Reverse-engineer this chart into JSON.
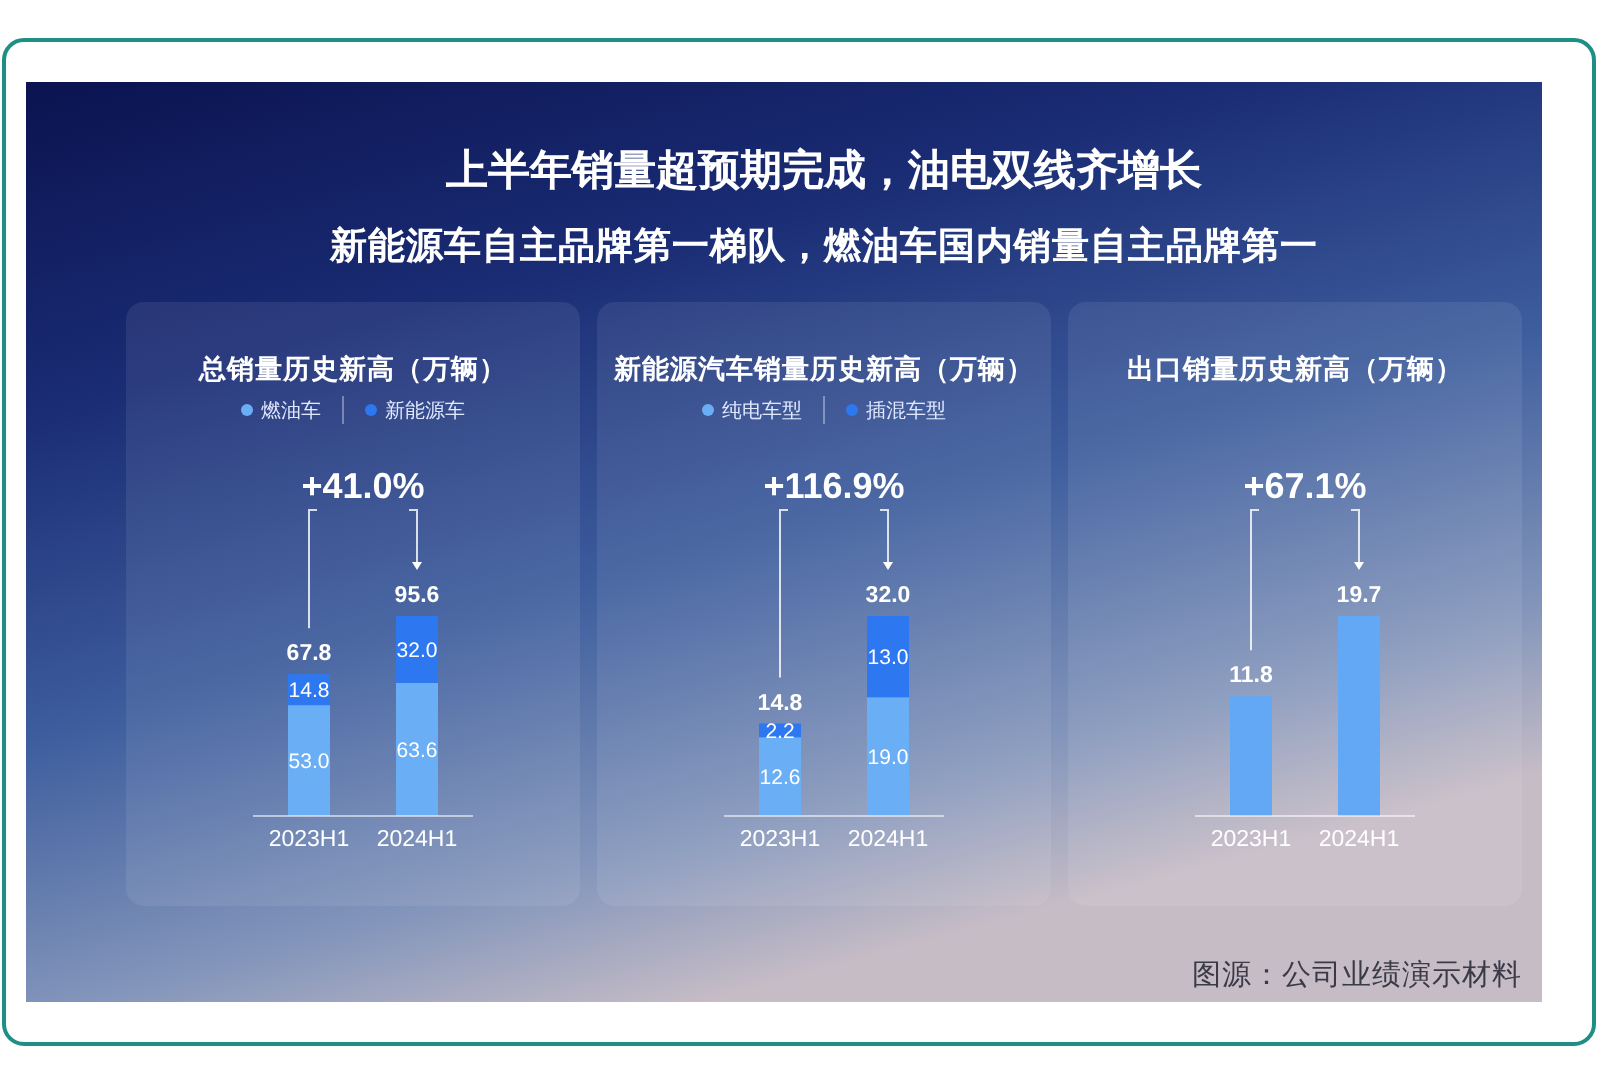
{
  "chart_data": [
    {
      "type": "bar",
      "title": "总销量历史新高（万辆）",
      "categories": [
        "2023H1",
        "2024H1"
      ],
      "stacked": true,
      "legend": "top",
      "tick_labels": "x",
      "series": [
        {
          "name": "燃油车",
          "color": "#6aaef6",
          "values": [
            53.0,
            63.6
          ],
          "value_labels": [
            "53.0",
            "63.6"
          ]
        },
        {
          "name": "新能源车",
          "color": "#2d78f0",
          "values": [
            14.8,
            32.0
          ],
          "value_labels": [
            "14.8",
            "32.0"
          ]
        }
      ],
      "totals": [
        "67.8",
        "95.6"
      ],
      "annotations": [
        "上半年销量超预期完成，油电双线齐增长",
        "新能源车自主品牌第一梯队，燃油车国内销量自主品牌第一",
        "+41.0%"
      ]
    },
    {
      "type": "bar",
      "title": "新能源汽车销量历史新高（万辆）",
      "categories": [
        "2023H1",
        "2024H1"
      ],
      "stacked": true,
      "legend": "top",
      "tick_labels": "x",
      "series": [
        {
          "name": "纯电车型",
          "color": "#6aaef6",
          "values": [
            12.6,
            19.0
          ],
          "value_labels": [
            "12.6",
            "19.0"
          ]
        },
        {
          "name": "插混车型",
          "color": "#2d78f0",
          "values": [
            2.2,
            13.0
          ],
          "value_labels": [
            "2.2",
            "13.0"
          ]
        }
      ],
      "totals": [
        "14.8",
        "32.0"
      ],
      "annotations": [
        "+116.9%"
      ]
    },
    {
      "type": "bar",
      "title": "出口销量历史新高（万辆）",
      "categories": [
        "2023H1",
        "2024H1"
      ],
      "tick_labels": "x",
      "values": [
        11.8,
        19.7
      ],
      "value_labels": [
        "11.8",
        "19.7"
      ],
      "color": "#62a8f4",
      "annotations": [
        "+67.1%",
        "图源：公司业绩演示材料"
      ]
    }
  ]
}
